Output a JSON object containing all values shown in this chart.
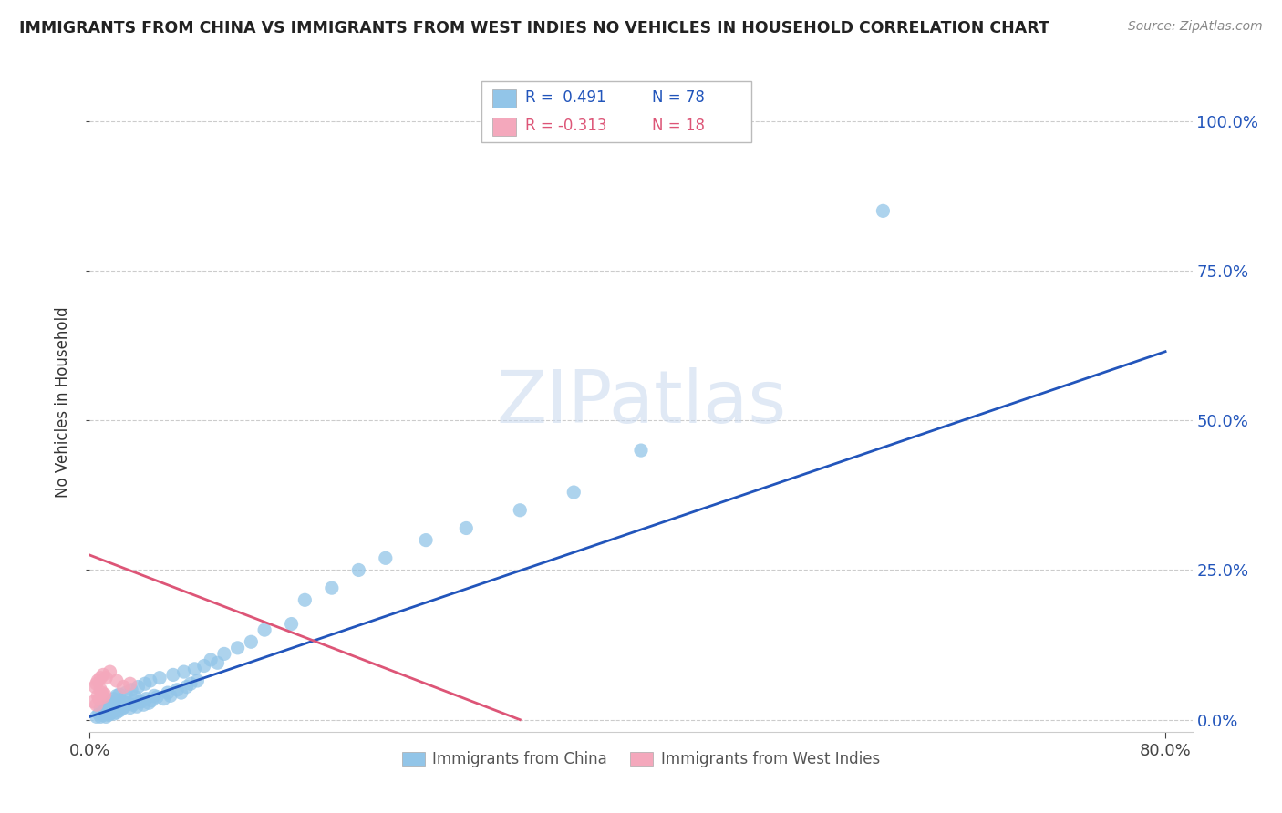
{
  "title": "IMMIGRANTS FROM CHINA VS IMMIGRANTS FROM WEST INDIES NO VEHICLES IN HOUSEHOLD CORRELATION CHART",
  "source": "Source: ZipAtlas.com",
  "ylabel": "No Vehicles in Household",
  "ytick_labels": [
    "0.0%",
    "25.0%",
    "50.0%",
    "75.0%",
    "100.0%"
  ],
  "ytick_values": [
    0.0,
    0.25,
    0.5,
    0.75,
    1.0
  ],
  "xlim": [
    0.0,
    0.82
  ],
  "ylim": [
    -0.02,
    1.08
  ],
  "watermark": "ZIPatlas",
  "color_china": "#92C5E8",
  "color_wi": "#F4A8BC",
  "color_line_china": "#2255BB",
  "color_line_wi": "#DD5577",
  "china_line_x": [
    0.0,
    0.8
  ],
  "china_line_y": [
    0.005,
    0.615
  ],
  "wi_line_x": [
    0.0,
    0.32
  ],
  "wi_line_y": [
    0.275,
    0.0
  ],
  "china_x": [
    0.005,
    0.007,
    0.008,
    0.008,
    0.01,
    0.01,
    0.011,
    0.012,
    0.012,
    0.013,
    0.013,
    0.014,
    0.014,
    0.015,
    0.015,
    0.016,
    0.016,
    0.017,
    0.018,
    0.018,
    0.019,
    0.02,
    0.02,
    0.021,
    0.022,
    0.022,
    0.023,
    0.024,
    0.025,
    0.026,
    0.027,
    0.028,
    0.03,
    0.031,
    0.032,
    0.033,
    0.034,
    0.035,
    0.036,
    0.038,
    0.04,
    0.041,
    0.042,
    0.044,
    0.045,
    0.046,
    0.048,
    0.05,
    0.052,
    0.055,
    0.058,
    0.06,
    0.062,
    0.065,
    0.068,
    0.07,
    0.072,
    0.075,
    0.078,
    0.08,
    0.085,
    0.09,
    0.095,
    0.1,
    0.11,
    0.12,
    0.13,
    0.15,
    0.16,
    0.18,
    0.2,
    0.22,
    0.25,
    0.28,
    0.32,
    0.36,
    0.41,
    0.59
  ],
  "china_y": [
    0.005,
    0.01,
    0.005,
    0.02,
    0.008,
    0.015,
    0.01,
    0.005,
    0.018,
    0.012,
    0.025,
    0.008,
    0.022,
    0.01,
    0.03,
    0.012,
    0.028,
    0.015,
    0.01,
    0.035,
    0.018,
    0.012,
    0.04,
    0.02,
    0.015,
    0.042,
    0.025,
    0.018,
    0.03,
    0.022,
    0.045,
    0.028,
    0.02,
    0.05,
    0.025,
    0.032,
    0.038,
    0.022,
    0.055,
    0.03,
    0.025,
    0.06,
    0.035,
    0.028,
    0.065,
    0.032,
    0.04,
    0.038,
    0.07,
    0.035,
    0.045,
    0.04,
    0.075,
    0.05,
    0.045,
    0.08,
    0.055,
    0.06,
    0.085,
    0.065,
    0.09,
    0.1,
    0.095,
    0.11,
    0.12,
    0.13,
    0.15,
    0.16,
    0.2,
    0.22,
    0.25,
    0.27,
    0.3,
    0.32,
    0.35,
    0.38,
    0.45,
    0.85
  ],
  "wi_x": [
    0.003,
    0.004,
    0.005,
    0.005,
    0.006,
    0.006,
    0.007,
    0.008,
    0.008,
    0.009,
    0.01,
    0.01,
    0.011,
    0.012,
    0.015,
    0.02,
    0.025,
    0.03
  ],
  "wi_y": [
    0.03,
    0.055,
    0.025,
    0.06,
    0.04,
    0.065,
    0.035,
    0.05,
    0.07,
    0.045,
    0.038,
    0.075,
    0.042,
    0.07,
    0.08,
    0.065,
    0.055,
    0.06
  ]
}
